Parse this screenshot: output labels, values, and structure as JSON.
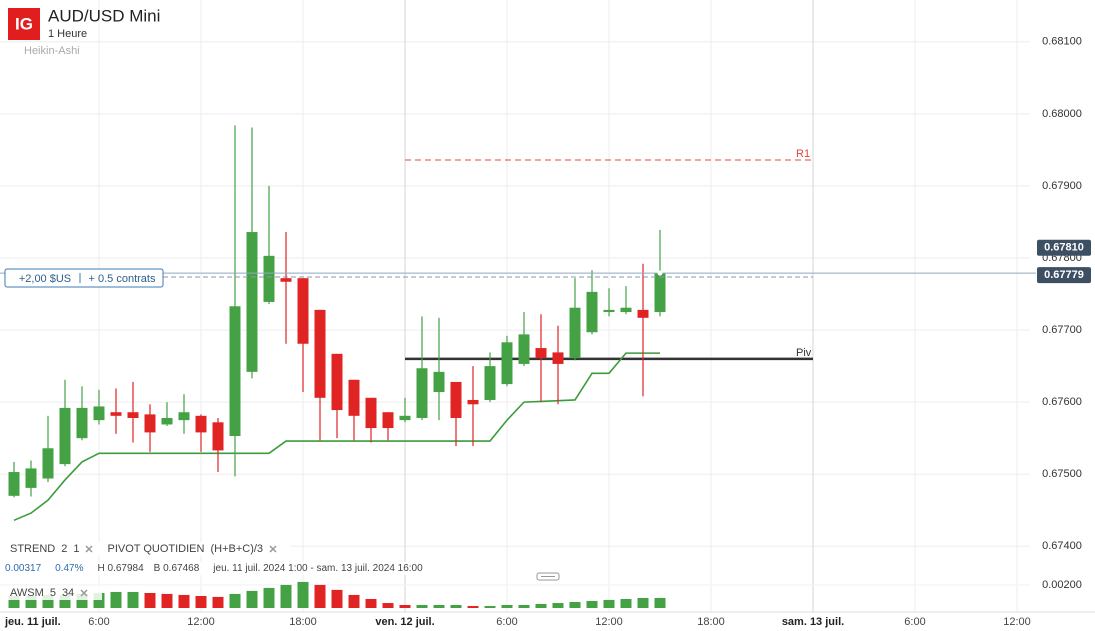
{
  "chart_data": {
    "type": "candlestick",
    "logo": "IG",
    "title": "AUD/USD Mini",
    "interval": "1 Heure",
    "style": "Heikin-Ashi",
    "up_color": "#44a244",
    "down_color": "#e02424",
    "ylim": [
      0.67374,
      0.68158
    ],
    "yticks": [
      {
        "value": 0.681,
        "label": "0.68100"
      },
      {
        "value": 0.68,
        "label": "0.68000"
      },
      {
        "value": 0.679,
        "label": "0.67900"
      },
      {
        "value": 0.678,
        "label": "0.67800"
      },
      {
        "value": 0.677,
        "label": "0.67700"
      },
      {
        "value": 0.676,
        "label": "0.67600"
      },
      {
        "value": 0.675,
        "label": "0.67500"
      },
      {
        "value": 0.674,
        "label": "0.67400"
      }
    ],
    "grid": true,
    "xticks": [
      "jeu. 11 juil.",
      "6:00",
      "12:00",
      "18:00",
      "ven. 12 juil.",
      "6:00",
      "12:00",
      "18:00",
      "sam. 13 juil.",
      "6:00",
      "12:00"
    ],
    "open": [
      0.6747,
      0.67481,
      0.67494,
      0.67514,
      0.6755,
      0.67575,
      0.67586,
      0.67586,
      0.67583,
      0.67569,
      0.67575,
      0.67581,
      0.67572,
      0.67553,
      0.67642,
      0.67739,
      0.67772,
      0.67772,
      0.67728,
      0.67667,
      0.67631,
      0.67606,
      0.67586,
      0.67575,
      0.67578,
      0.67614,
      0.67628,
      0.67603,
      0.67603,
      0.67625,
      0.67653,
      0.67675,
      0.67669,
      0.67661,
      0.67697,
      0.67725,
      0.67725,
      0.67728,
      0.67725
    ],
    "high": [
      0.67517,
      0.67519,
      0.67581,
      0.67631,
      0.67622,
      0.67617,
      0.67619,
      0.67628,
      0.67597,
      0.676,
      0.67611,
      0.67583,
      0.67578,
      0.67984,
      0.67981,
      0.679,
      0.67836,
      0.67772,
      0.67728,
      0.67667,
      0.67631,
      0.67606,
      0.67586,
      0.67606,
      0.67719,
      0.67717,
      0.67628,
      0.6765,
      0.67669,
      0.67692,
      0.67725,
      0.67722,
      0.67706,
      0.67772,
      0.67783,
      0.67758,
      0.67761,
      0.67792,
      0.67839
    ],
    "low": [
      0.67468,
      0.67469,
      0.67489,
      0.67511,
      0.67547,
      0.67569,
      0.67556,
      0.67544,
      0.67531,
      0.67567,
      0.67556,
      0.67531,
      0.67503,
      0.67497,
      0.67633,
      0.67736,
      0.67681,
      0.67614,
      0.67547,
      0.6755,
      0.67547,
      0.67544,
      0.67547,
      0.67572,
      0.67575,
      0.67575,
      0.67539,
      0.67539,
      0.676,
      0.67622,
      0.6765,
      0.676,
      0.67597,
      0.67658,
      0.67694,
      0.67719,
      0.67722,
      0.67608,
      0.67719
    ],
    "close": [
      0.67503,
      0.67508,
      0.67536,
      0.67592,
      0.67592,
      0.67594,
      0.67581,
      0.67578,
      0.67558,
      0.67578,
      0.67586,
      0.67558,
      0.67533,
      0.67733,
      0.67836,
      0.67803,
      0.67767,
      0.67681,
      0.67606,
      0.67589,
      0.67581,
      0.67564,
      0.67564,
      0.67581,
      0.67647,
      0.67642,
      0.67578,
      0.67597,
      0.6765,
      0.67683,
      0.67694,
      0.67661,
      0.67653,
      0.67731,
      0.67753,
      0.67728,
      0.67731,
      0.67717,
      0.67779
    ],
    "indicators": [
      {
        "name": "STREND",
        "params": [
          2,
          1
        ],
        "color": "#3c9c3c",
        "values": [
          0.67436,
          0.67446,
          0.67464,
          0.67492,
          0.67517,
          0.67529,
          0.67529,
          0.67529,
          0.67529,
          0.67529,
          0.67529,
          0.67529,
          0.67529,
          0.67529,
          0.67529,
          0.67529,
          0.67546,
          0.67546,
          0.67546,
          0.67546,
          0.67546,
          0.67546,
          0.67546,
          0.67546,
          0.67546,
          0.67546,
          0.67546,
          0.67546,
          0.67546,
          0.67575,
          0.676,
          0.67601,
          0.67602,
          0.67603,
          0.6764,
          0.6764,
          0.67668,
          0.67668,
          0.67668
        ]
      },
      {
        "name": "PIVOT QUOTIDIEN",
        "params": [
          "(H+B+C)/3"
        ],
        "levels": [
          {
            "name": "R1",
            "value": 0.67936,
            "color": "#e0483c",
            "dashed": true
          },
          {
            "name": "Piv",
            "value": 0.6766,
            "color": "#333333",
            "dashed": false
          }
        ]
      }
    ],
    "stats": {
      "change": "0.00317",
      "change_pct": "0.47%",
      "high": "H 0.67984",
      "low": "B 0.67468",
      "range": "jeu. 11 juil. 2024 1:00 - sam. 13 juil. 2024 16:00"
    },
    "price_markers": [
      {
        "value": 0.6781,
        "label": "0.67810"
      },
      {
        "value": 0.67779,
        "label": "0.67779"
      }
    ],
    "position": {
      "pnl": "+2,00 $US",
      "size": "+ 0.5 contrats"
    },
    "oscillator": {
      "name": "AWSM",
      "params": [
        5,
        34
      ],
      "ylim": [
        0,
        0.0026
      ],
      "yticks": [
        {
          "value": 0.002,
          "label": "0.00200"
        }
      ],
      "values": [
        0.00104,
        0.00104,
        0.00113,
        0.00113,
        0.00122,
        0.0013,
        0.00139,
        0.00139,
        0.0013,
        0.00122,
        0.00113,
        0.00104,
        0.00096,
        0.00122,
        0.00148,
        0.00174,
        0.002,
        0.00226,
        0.002,
        0.00157,
        0.00113,
        0.00078,
        0.00043,
        0.00026,
        0.00026,
        0.00026,
        0.00026,
        0.00017,
        0.00017,
        0.00026,
        0.00026,
        0.00035,
        0.00043,
        0.00052,
        0.00061,
        0.0007,
        0.00078,
        0.00087,
        0.00087
      ]
    }
  }
}
